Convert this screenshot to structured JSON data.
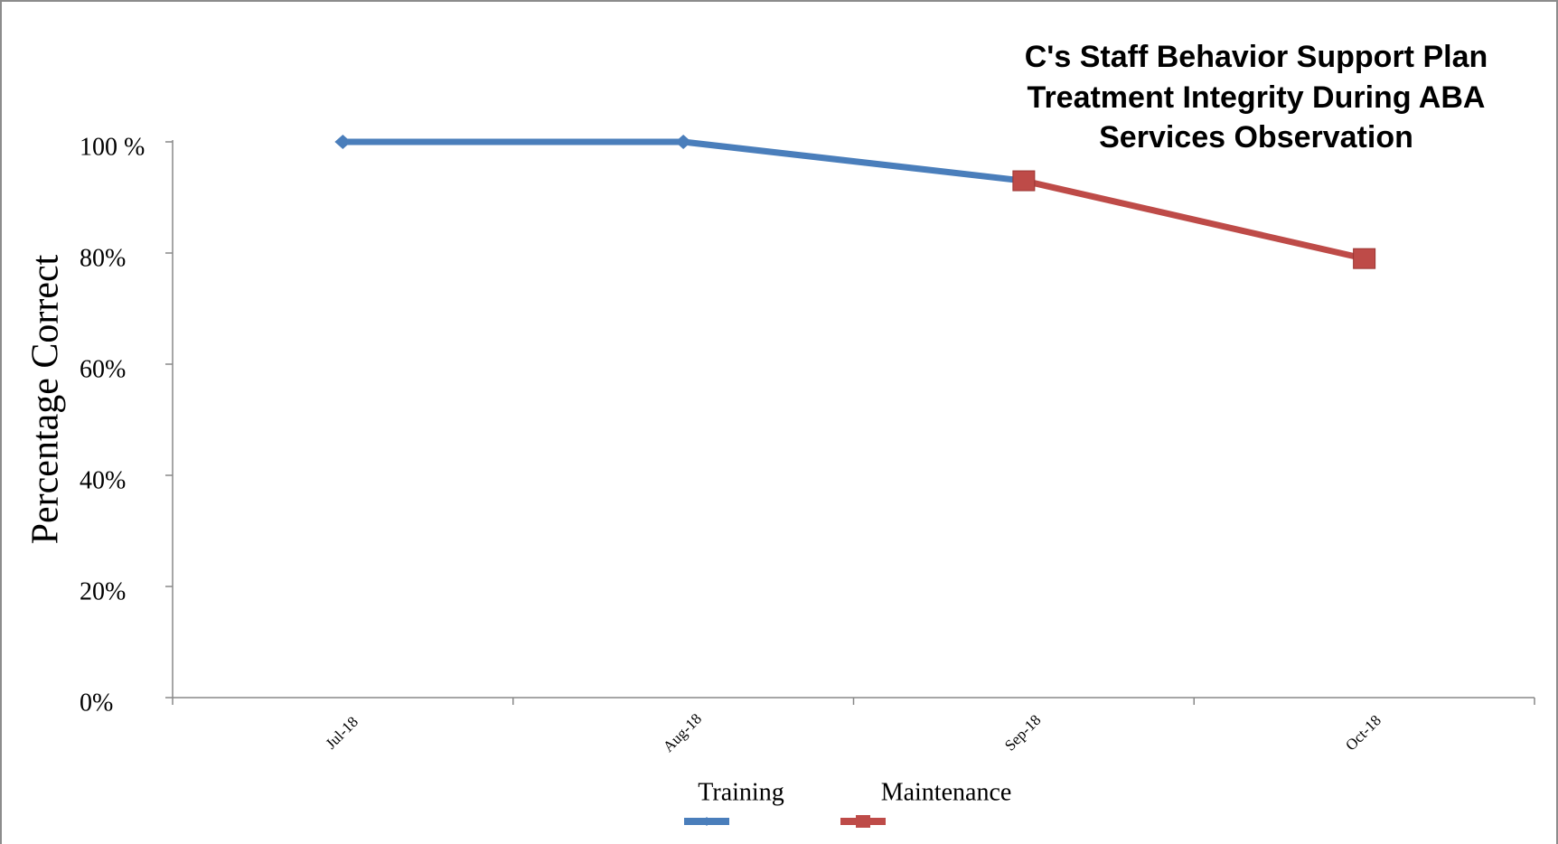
{
  "chart_data": {
    "type": "line",
    "title": [
      "C's Staff Behavior Support Plan",
      "Treatment Integrity During ABA",
      "Services Observation"
    ],
    "y_label": "Percentage Correct",
    "categories": [
      "Jul-18",
      "Aug-18",
      "Sep-18",
      "Oct-18"
    ],
    "series": [
      {
        "name": "Training",
        "color": "#4a7ebb",
        "marker": "diamond",
        "values": [
          100,
          100,
          93,
          null
        ]
      },
      {
        "name": "Maintenance",
        "color": "#be4b48",
        "marker": "square",
        "values": [
          null,
          null,
          93,
          79
        ]
      }
    ],
    "ylim": [
      0,
      100
    ],
    "yticks": [
      {
        "value": 0,
        "label": "0%"
      },
      {
        "value": 20,
        "label": "20%"
      },
      {
        "value": 40,
        "label": "40%"
      },
      {
        "value": 60,
        "label": "60%"
      },
      {
        "value": 80,
        "label": "80%"
      },
      {
        "value": 100,
        "label": "100 %"
      }
    ],
    "legend": "bottom"
  }
}
